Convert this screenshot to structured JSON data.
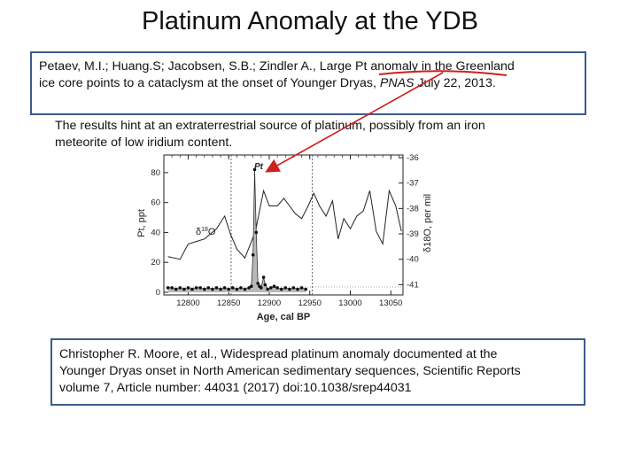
{
  "slide": {
    "title": "Platinum Anomaly at the YDB"
  },
  "reference_top": {
    "line1_prefix": "Petaev, M.I.; Huang.S; Jacobsen, S.B.; Zindler A., Large ",
    "line1_highlight": "Pt anomaly in the Greenland",
    "line2_prefix": "ice core points to a cataclysm at the onset of Younger Dryas, ",
    "line2_journal": "PNAS",
    "line2_suffix": " July 22, 2013."
  },
  "summary": {
    "line1": "The results hint at an extraterrestrial source of platinum, possibly from an iron",
    "line2": "meteorite of low iridium content."
  },
  "reference_bottom": {
    "line1": "Christopher R. Moore, et al., Widespread platinum anomaly documented at the",
    "line2": "Younger Dryas onset in North American sedimentary sequences, Scientific Reports",
    "line3": "volume 7, Article number: 44031 (2017) doi:10.1038/srep44031"
  },
  "colors": {
    "box_border": "#3b5b8c",
    "annotation_red": "#cc1f1f",
    "pt_fill": "#b9b9b9"
  },
  "chart_data": {
    "type": "line",
    "xlabel": "Age, cal BP",
    "ylabel_left": "Pt, ppt",
    "ylabel_right": "δ18O, per mil",
    "xlim": [
      12770,
      13065
    ],
    "ylim_left": [
      0,
      90
    ],
    "ylim_right": [
      -41.3,
      -36
    ],
    "x_ticks": [
      "12800",
      "12850",
      "12900",
      "12950",
      "13000",
      "13050"
    ],
    "y_ticks_left": [
      "0",
      "20",
      "40",
      "60",
      "80"
    ],
    "y_ticks_right": [
      "-36",
      "-37",
      "-38",
      "-39",
      "-40",
      "-41"
    ],
    "annotations": {
      "pt_peak": "Pt",
      "d18o_label": "δ18O"
    },
    "dashed_x": [
      12853,
      12953
    ],
    "series": [
      {
        "axis": "right",
        "points": [
          [
            12775,
            -39.9
          ],
          [
            12790,
            -40.0
          ],
          [
            12800,
            -39.4
          ],
          [
            12810,
            -39.3
          ],
          [
            12820,
            -39.2
          ],
          [
            12835,
            -38.8
          ],
          [
            12845,
            -38.3
          ],
          [
            12852,
            -39.0
          ],
          [
            12860,
            -39.6
          ],
          [
            12870,
            -39.95
          ],
          [
            12883,
            -38.9
          ],
          [
            12893,
            -37.3
          ],
          [
            12900,
            -37.9
          ],
          [
            12910,
            -37.9
          ],
          [
            12918,
            -37.6
          ],
          [
            12925,
            -37.9
          ],
          [
            12932,
            -38.2
          ],
          [
            12940,
            -38.4
          ],
          [
            12948,
            -37.9
          ],
          [
            12955,
            -37.4
          ],
          [
            12962,
            -37.9
          ],
          [
            12970,
            -38.3
          ],
          [
            12978,
            -37.7
          ],
          [
            12985,
            -39.2
          ],
          [
            12992,
            -38.4
          ],
          [
            13000,
            -38.8
          ],
          [
            13008,
            -38.3
          ],
          [
            13016,
            -38.1
          ],
          [
            13024,
            -37.3
          ],
          [
            13032,
            -38.9
          ],
          [
            13040,
            -39.4
          ],
          [
            13048,
            -37.3
          ],
          [
            13056,
            -37.9
          ],
          [
            13063,
            -38.9
          ]
        ]
      },
      {
        "axis": "left",
        "points": [
          [
            12775,
            3
          ],
          [
            12780,
            3
          ],
          [
            12785,
            2
          ],
          [
            12790,
            3
          ],
          [
            12795,
            2
          ],
          [
            12800,
            3
          ],
          [
            12805,
            2
          ],
          [
            12810,
            3
          ],
          [
            12815,
            3
          ],
          [
            12820,
            2
          ],
          [
            12825,
            3
          ],
          [
            12830,
            2
          ],
          [
            12835,
            3
          ],
          [
            12840,
            2
          ],
          [
            12845,
            3
          ],
          [
            12850,
            2
          ],
          [
            12855,
            3
          ],
          [
            12860,
            2
          ],
          [
            12865,
            3
          ],
          [
            12870,
            2
          ],
          [
            12875,
            3
          ],
          [
            12878,
            4
          ],
          [
            12880,
            25
          ],
          [
            12882,
            82
          ],
          [
            12884,
            40
          ],
          [
            12886,
            6
          ],
          [
            12888,
            4
          ],
          [
            12890,
            3
          ],
          [
            12893,
            10
          ],
          [
            12895,
            5
          ],
          [
            12898,
            2
          ],
          [
            12902,
            3
          ],
          [
            12906,
            4
          ],
          [
            12910,
            3
          ],
          [
            12915,
            2
          ],
          [
            12920,
            3
          ],
          [
            12925,
            2
          ],
          [
            12930,
            3
          ],
          [
            12935,
            2
          ],
          [
            12940,
            3
          ],
          [
            12945,
            2
          ]
        ]
      }
    ]
  }
}
